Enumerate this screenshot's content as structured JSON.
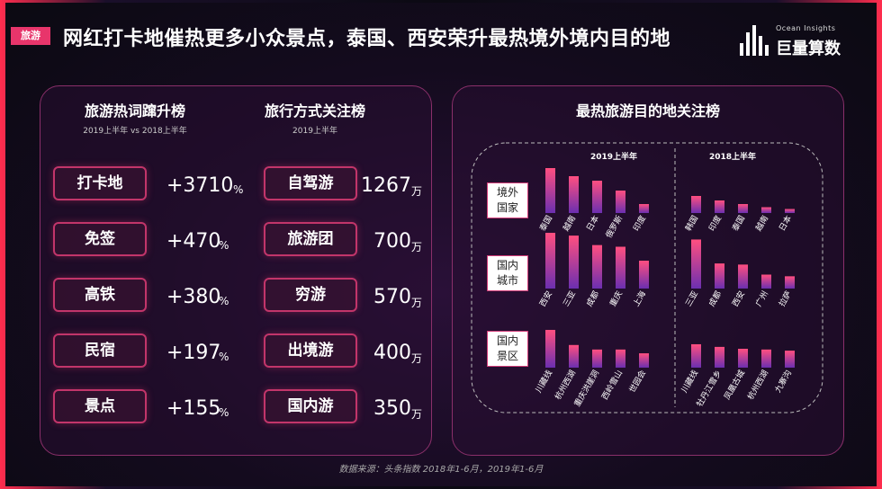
{
  "header": {
    "tag": "旅游",
    "title": "网红打卡地催热更多小众景点，泰国、西安荣升最热境外境内目的地",
    "logo_sub": "Ocean Insights",
    "logo_main": "巨量算数"
  },
  "left_panel": {
    "col1": {
      "title": "旅游热词蹿升榜",
      "subtitle": "2019上半年 vs 2018上半年",
      "items": [
        {
          "label": "打卡地",
          "value": "+3710",
          "unit": "%"
        },
        {
          "label": "免签",
          "value": "+470",
          "unit": "%"
        },
        {
          "label": "高铁",
          "value": "+380",
          "unit": "%"
        },
        {
          "label": "民宿",
          "value": "+197",
          "unit": "%"
        },
        {
          "label": "景点",
          "value": "+155",
          "unit": "%"
        }
      ]
    },
    "col2": {
      "title": "旅行方式关注榜",
      "subtitle": "2019上半年",
      "items": [
        {
          "label": "自驾游",
          "value": "1267",
          "unit": "万"
        },
        {
          "label": "旅游团",
          "value": "700",
          "unit": "万"
        },
        {
          "label": "穷游",
          "value": "570",
          "unit": "万"
        },
        {
          "label": "出境游",
          "value": "400",
          "unit": "万"
        },
        {
          "label": "国内游",
          "value": "350",
          "unit": "万"
        }
      ]
    }
  },
  "right_panel": {
    "title": "最热旅游目的地关注榜",
    "period_2019": "2019上半年",
    "period_2018": "2018上半年",
    "row_labels": [
      {
        "line1": "境外",
        "line2": "国家"
      },
      {
        "line1": "国内",
        "line2": "城市"
      },
      {
        "line1": "国内",
        "line2": "景区"
      }
    ]
  },
  "chart_data": [
    {
      "type": "bar",
      "group": "境外国家",
      "period": "2019上半年",
      "categories": [
        "泰国",
        "越南",
        "日本",
        "俄罗斯",
        "印度"
      ],
      "values": [
        100,
        82,
        72,
        50,
        20
      ]
    },
    {
      "type": "bar",
      "group": "境外国家",
      "period": "2018上半年",
      "categories": [
        "韩国",
        "印度",
        "泰国",
        "越南",
        "日本"
      ],
      "values": [
        38,
        28,
        20,
        13,
        9
      ]
    },
    {
      "type": "bar",
      "group": "国内城市",
      "period": "2019上半年",
      "categories": [
        "西安",
        "三亚",
        "成都",
        "重庆",
        "上海"
      ],
      "values": [
        100,
        95,
        78,
        75,
        50
      ]
    },
    {
      "type": "bar",
      "group": "国内城市",
      "period": "2018上半年",
      "categories": [
        "三亚",
        "成都",
        "西安",
        "广州",
        "拉萨"
      ],
      "values": [
        88,
        45,
        43,
        25,
        22
      ]
    },
    {
      "type": "bar",
      "group": "国内景区",
      "period": "2019上半年",
      "categories": [
        "川藏线",
        "杭州西湖",
        "重庆洪崖洞",
        "西岭雪山",
        "世园会"
      ],
      "values": [
        100,
        60,
        48,
        48,
        38
      ]
    },
    {
      "type": "bar",
      "group": "国内景区",
      "period": "2018上半年",
      "categories": [
        "川藏线",
        "牡丹江雪乡",
        "凤凰古城",
        "杭州西湖",
        "九寨沟"
      ],
      "values": [
        62,
        55,
        50,
        48,
        45
      ]
    }
  ],
  "footer": {
    "source": "数据来源：头条指数  2018年1-6月，2019年1-6月"
  },
  "colors": {
    "accent": "#e8356b",
    "bar_top": "#ff4f80",
    "bar_bottom": "#6b2fb0",
    "panel_border": "#8a2f6a"
  }
}
